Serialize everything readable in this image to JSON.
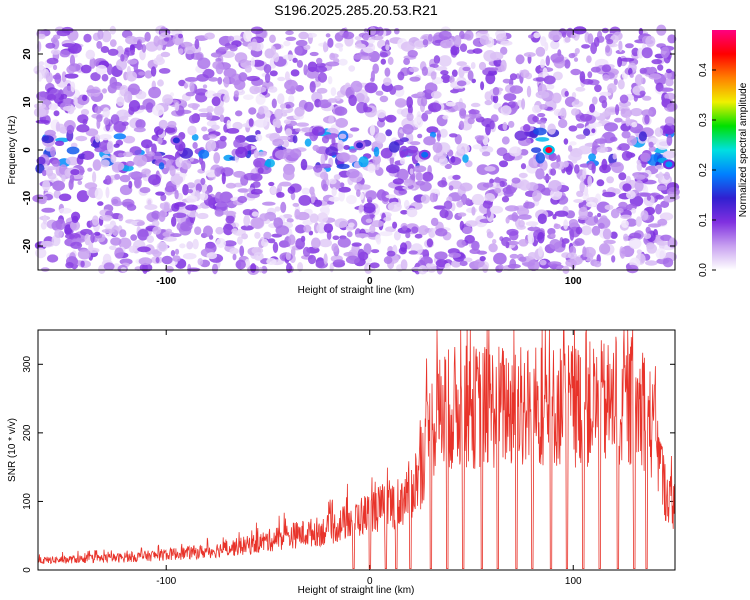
{
  "chart_data": [
    {
      "type": "heatmap",
      "title": "S196.2025.285.20.53.R21",
      "xlabel": "Height of straight line (km)",
      "ylabel": "Frequency (Hz)",
      "xlim": [
        -163,
        150
      ],
      "ylim": [
        -25,
        25
      ],
      "xticks": [
        -100,
        0,
        100
      ],
      "yticks": [
        -20,
        -10,
        0,
        10,
        20
      ],
      "colorbar": {
        "label": "Normalized spectral amplitude",
        "range": [
          0.0,
          0.48
        ],
        "ticks": [
          0.0,
          0.1,
          0.2,
          0.3,
          0.4
        ],
        "tick_labels": [
          "0.0",
          "0.1",
          "0.2",
          "0.3",
          "0.4"
        ],
        "colors": [
          "#ffffff",
          "#c8a0f0",
          "#8030e0",
          "#3020d0",
          "#0080ff",
          "#00e0e0",
          "#00e000",
          "#f0f000",
          "#ff8000",
          "#ff0000",
          "#ff0080"
        ]
      },
      "description_values": {
        "background_level": 0.05,
        "strong_features": [
          {
            "x": 88,
            "y": 0,
            "value": 0.45
          },
          {
            "x": 147,
            "y": -3,
            "value": 0.2
          },
          {
            "x": 27,
            "y": -1,
            "value": 0.18
          },
          {
            "x": -95,
            "y": 2,
            "value": 0.15
          },
          {
            "x": -5,
            "y": 1,
            "value": 0.14
          }
        ]
      }
    },
    {
      "type": "line",
      "title": "",
      "xlabel": "Height of straight line (km)",
      "ylabel": "SNR (10 * v/v)",
      "xlim": [
        -163,
        150
      ],
      "ylim": [
        0,
        350
      ],
      "xticks": [
        -100,
        0,
        100
      ],
      "yticks": [
        0,
        100,
        200,
        300
      ],
      "series": [
        {
          "name": "SNR",
          "color": "#e8332a",
          "envelope_x": [
            -163,
            -140,
            -120,
            -100,
            -80,
            -60,
            -40,
            -20,
            -10,
            0,
            5,
            10,
            15,
            20,
            25,
            30,
            35,
            40,
            60,
            80,
            100,
            120,
            135,
            140,
            145,
            150
          ],
          "envelope_y": [
            15,
            18,
            20,
            25,
            30,
            40,
            55,
            65,
            80,
            92,
            100,
            105,
            110,
            130,
            160,
            230,
            255,
            262,
            265,
            265,
            268,
            268,
            262,
            220,
            130,
            100
          ],
          "dropout_x": [
            -8,
            0,
            8,
            13,
            20,
            30,
            38,
            46,
            55,
            63,
            72,
            80,
            89,
            97,
            105,
            113,
            122,
            130,
            136
          ],
          "dropout_level": 2
        }
      ]
    }
  ]
}
